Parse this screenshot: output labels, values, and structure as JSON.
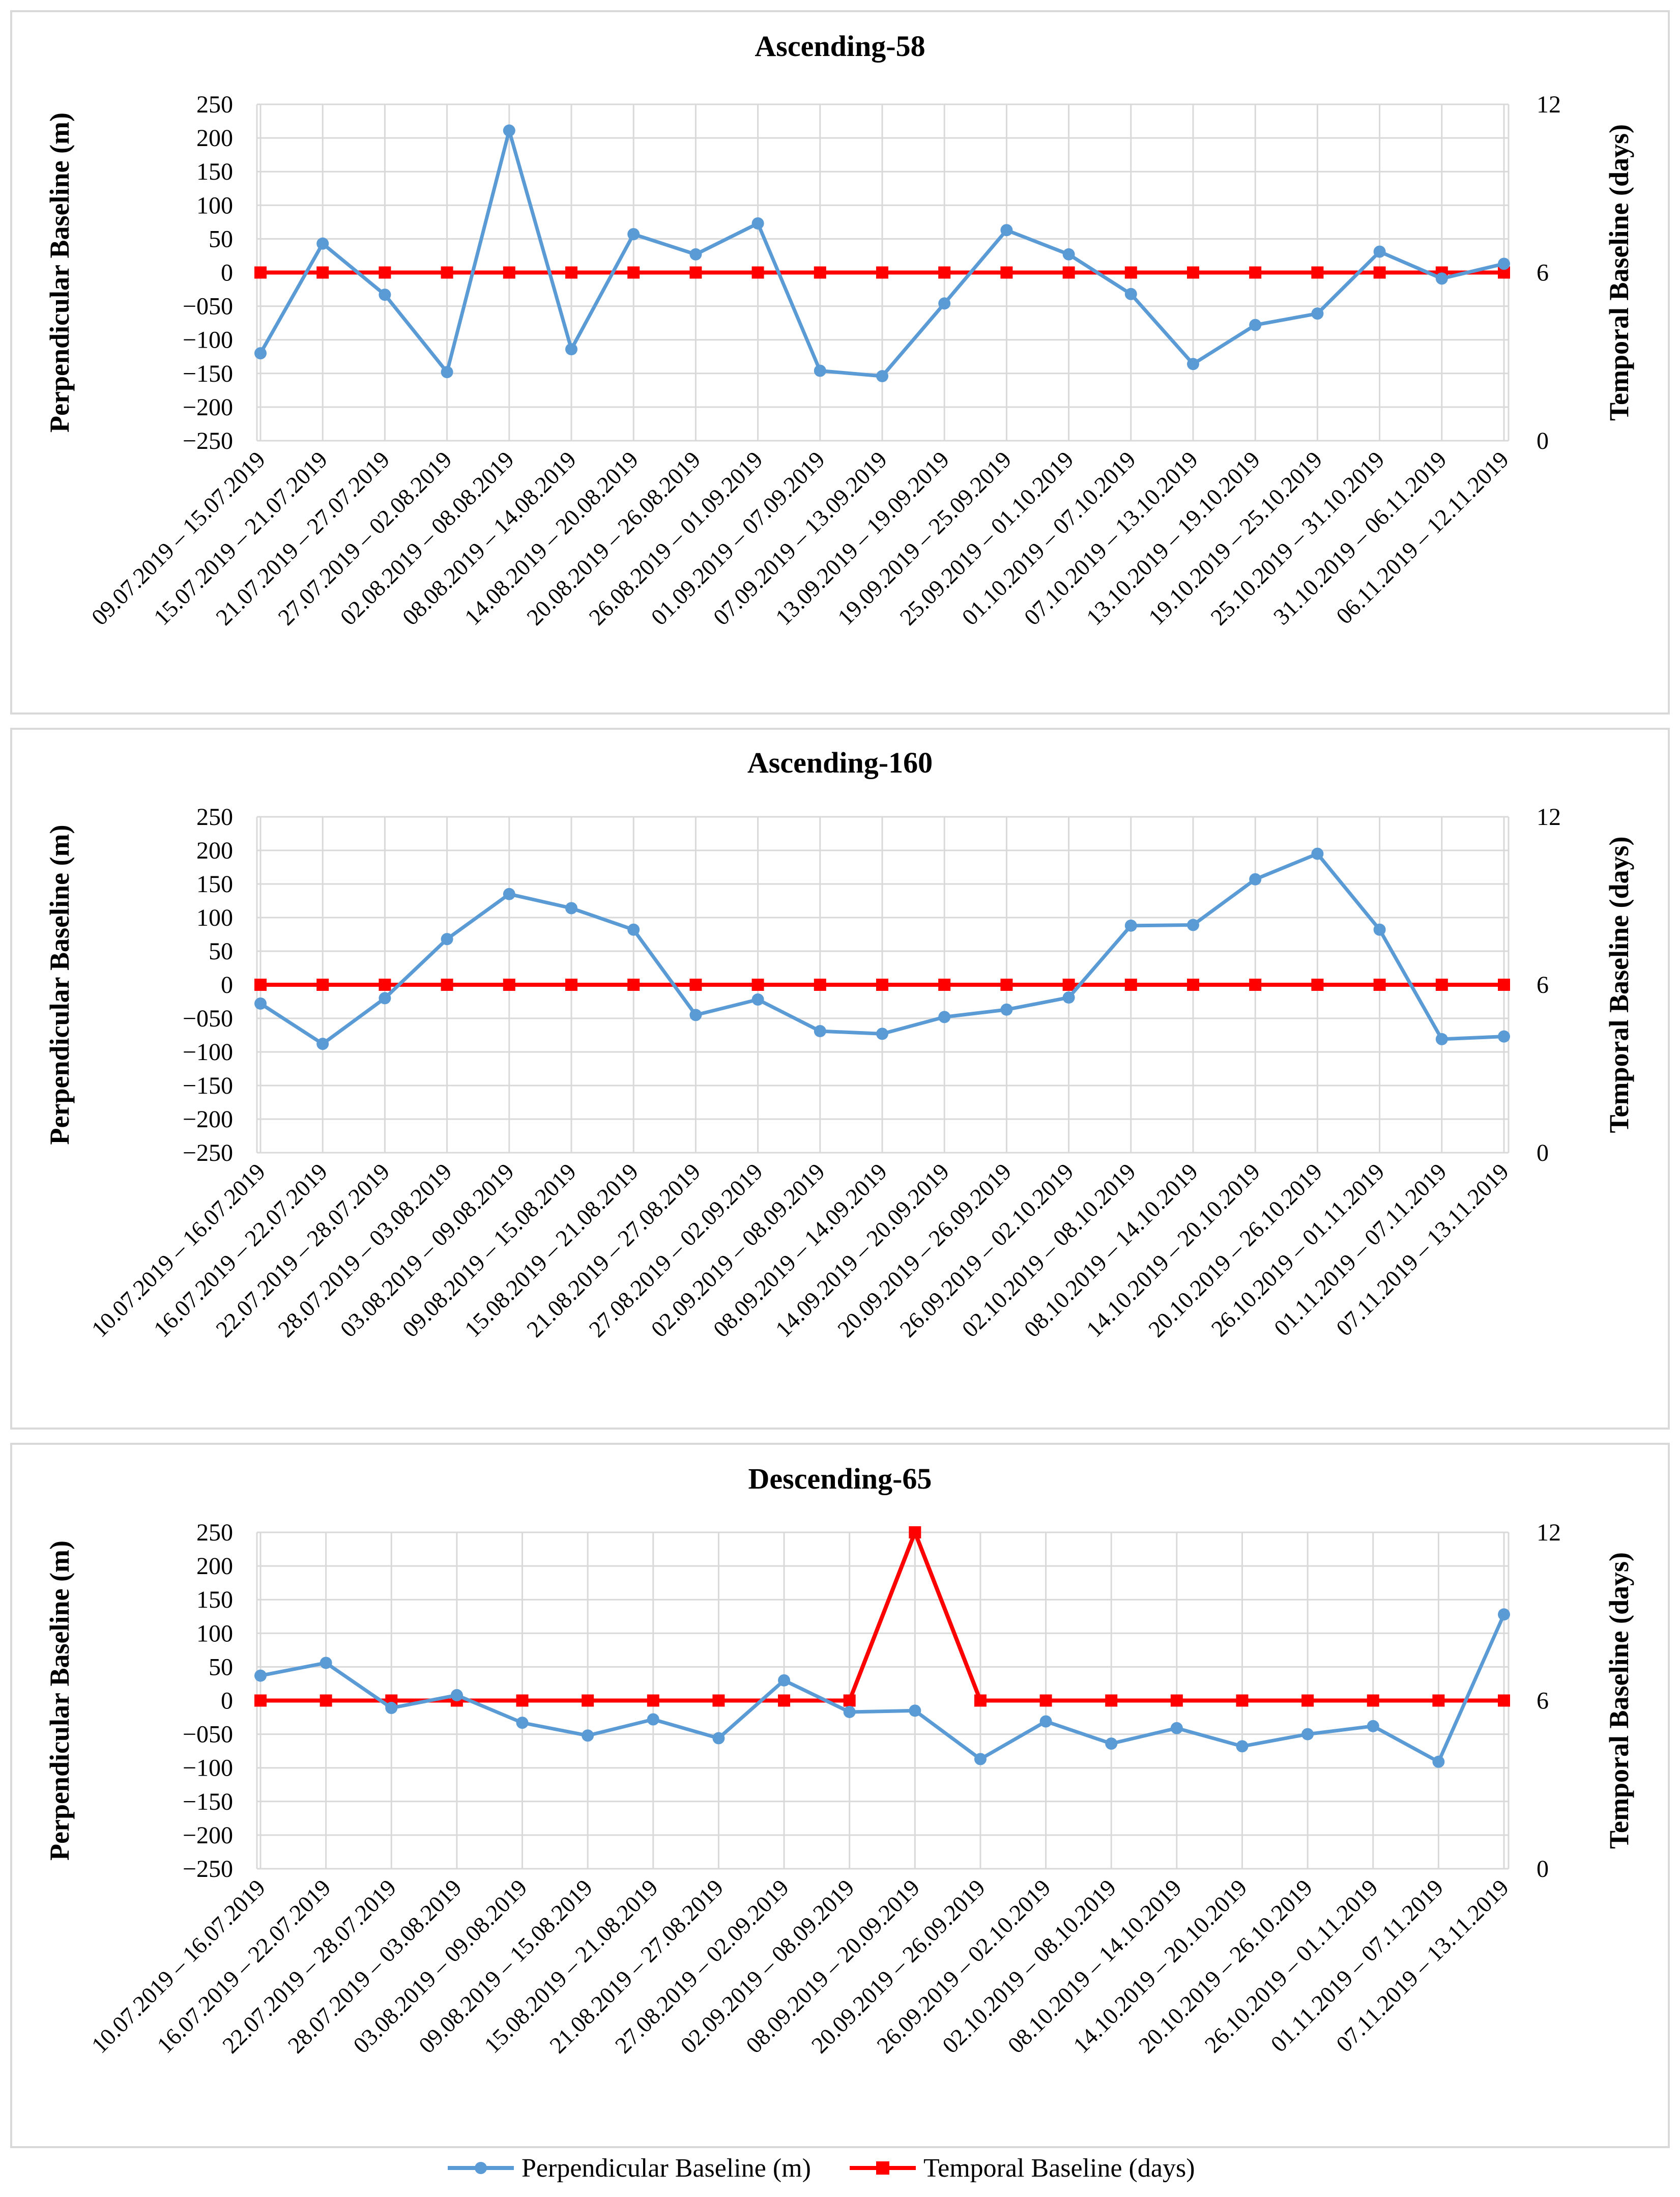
{
  "colors": {
    "perpendicular": "#5b9bd5",
    "temporal": "#ff0000",
    "grid": "#d9d9d9"
  },
  "legend": {
    "perpendicular": "Perpendicular Baseline (m)",
    "temporal": "Temporal Baseline (days)"
  },
  "chart_data": [
    {
      "type": "line",
      "title": "Ascending-58",
      "ylabel": "Perpendicular Baseline (m)",
      "y2label": "Temporal Baseline (days)",
      "ylim": [
        -250,
        250
      ],
      "y2lim": [
        0,
        12
      ],
      "yticks": [
        "250",
        "200",
        "150",
        "100",
        "50",
        "0",
        "−050",
        "−100",
        "−150",
        "−200",
        "−250"
      ],
      "y2ticks": [
        "12",
        "6",
        "0"
      ],
      "categories": [
        "09.07.2019 – 15.07.2019",
        "15.07.2019 – 21.07.2019",
        "21.07.2019 – 27.07.2019",
        "27.07.2019 – 02.08.2019",
        "02.08.2019 – 08.08.2019",
        "08.08.2019 – 14.08.2019",
        "14.08.2019 – 20.08.2019",
        "20.08.2019 – 26.08.2019",
        "26.08.2019 – 01.09.2019",
        "01.09.2019 – 07.09.2019",
        "07.09.2019 – 13.09.2019",
        "13.09.2019 – 19.09.2019",
        "19.09.2019 – 25.09.2019",
        "25.09.2019 – 01.10.2019",
        "01.10.2019 – 07.10.2019",
        "07.10.2019 – 13.10.2019",
        "13.10.2019 – 19.10.2019",
        "19.10.2019 – 25.10.2019",
        "25.10.2019 – 31.10.2019",
        "31.10.2019 – 06.11.2019",
        "06.11.2019 – 12.11.2019"
      ],
      "series": [
        {
          "name": "Perpendicular Baseline (m)",
          "axis": "left",
          "values": [
            -120,
            43,
            -33,
            -148,
            211,
            -114,
            57,
            27,
            73,
            -146,
            -154,
            -46,
            63,
            27,
            -32,
            -136,
            -78,
            -61,
            31,
            -9,
            13
          ]
        },
        {
          "name": "Temporal Baseline (days)",
          "axis": "right",
          "values": [
            6,
            6,
            6,
            6,
            6,
            6,
            6,
            6,
            6,
            6,
            6,
            6,
            6,
            6,
            6,
            6,
            6,
            6,
            6,
            6,
            6
          ]
        }
      ]
    },
    {
      "type": "line",
      "title": "Ascending-160",
      "ylabel": "Perpendicular Baseline (m)",
      "y2label": "Temporal Baseline (days)",
      "ylim": [
        -250,
        250
      ],
      "y2lim": [
        0,
        12
      ],
      "yticks": [
        "250",
        "200",
        "150",
        "100",
        "50",
        "0",
        "−050",
        "−100",
        "−150",
        "−200",
        "−250"
      ],
      "y2ticks": [
        "12",
        "6",
        "0"
      ],
      "categories": [
        "10.07.2019 – 16.07.2019",
        "16.07.2019 – 22.07.2019",
        "22.07.2019 – 28.07.2019",
        "28.07.2019 – 03.08.2019",
        "03.08.2019 – 09.08.2019",
        "09.08.2019 – 15.08.2019",
        "15.08.2019 – 21.08.2019",
        "21.08.2019 – 27.08.2019",
        "27.08.2019 – 02.09.2019",
        "02.09.2019 – 08.09.2019",
        "08.09.2019 – 14.09.2019",
        "14.09.2019 – 20.09.2019",
        "20.09.2019 – 26.09.2019",
        "26.09.2019 – 02.10.2019",
        "02.10.2019 – 08.10.2019",
        "08.10.2019 – 14.10.2019",
        "14.10.2019 – 20.10.2019",
        "20.10.2019 – 26.10.2019",
        "26.10.2019 – 01.11.2019",
        "01.11.2019 – 07.11.2019",
        "07.11.2019 – 13.11.2019"
      ],
      "series": [
        {
          "name": "Perpendicular Baseline (m)",
          "axis": "left",
          "values": [
            -28,
            -88,
            -20,
            68,
            135,
            114,
            82,
            -45,
            -22,
            -69,
            -73,
            -48,
            -37,
            -19,
            88,
            89,
            157,
            195,
            82,
            -81,
            -77
          ]
        },
        {
          "name": "Temporal Baseline (days)",
          "axis": "right",
          "values": [
            6,
            6,
            6,
            6,
            6,
            6,
            6,
            6,
            6,
            6,
            6,
            6,
            6,
            6,
            6,
            6,
            6,
            6,
            6,
            6,
            6
          ]
        }
      ]
    },
    {
      "type": "line",
      "title": "Descending-65",
      "ylabel": "Perpendicular Baseline (m)",
      "y2label": "Temporal Baseline (days)",
      "ylim": [
        -250,
        250
      ],
      "y2lim": [
        0,
        12
      ],
      "yticks": [
        "250",
        "200",
        "150",
        "100",
        "50",
        "0",
        "−050",
        "−100",
        "−150",
        "−200",
        "−250"
      ],
      "y2ticks": [
        "12",
        "6",
        "0"
      ],
      "categories": [
        "10.07.2019 – 16.07.2019",
        "16.07.2019 – 22.07.2019",
        "22.07.2019 – 28.07.2019",
        "28.07.2019 – 03.08.2019",
        "03.08.2019 – 09.08.2019",
        "09.08.2019 – 15.08.2019",
        "15.08.2019 – 21.08.2019",
        "21.08.2019 – 27.08.2019",
        "27.08.2019 – 02.09.2019",
        "02.09.2019 – 08.09.2019",
        "08.09.2019 – 20.09.2019",
        "20.09.2019 – 26.09.2019",
        "26.09.2019 – 02.10.2019",
        "02.10.2019 – 08.10.2019",
        "08.10.2019 – 14.10.2019",
        "14.10.2019 – 20.10.2019",
        "20.10.2019 – 26.10.2019",
        "26.10.2019 – 01.11.2019",
        "01.11.2019 – 07.11.2019",
        "07.11.2019 – 13.11.2019"
      ],
      "series": [
        {
          "name": "Perpendicular Baseline (m)",
          "axis": "left",
          "values": [
            37,
            56,
            -11,
            8,
            -33,
            -52,
            -28,
            -56,
            30,
            -17,
            -15,
            -87,
            -31,
            -64,
            -41,
            -68,
            -50,
            -38,
            -91,
            128
          ]
        },
        {
          "name": "Temporal Baseline (days)",
          "axis": "right",
          "values": [
            6,
            6,
            6,
            6,
            6,
            6,
            6,
            6,
            6,
            6,
            12,
            6,
            6,
            6,
            6,
            6,
            6,
            6,
            6,
            6
          ]
        }
      ]
    }
  ]
}
